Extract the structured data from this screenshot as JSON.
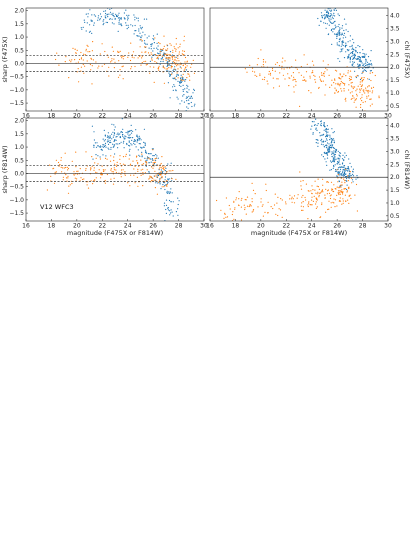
{
  "colors": {
    "blue": "#1f77b4",
    "orange": "#ff7f0e",
    "hline": "#333333"
  },
  "chart_data": [
    {
      "type": "scatter",
      "panel": "top-left",
      "xlabel": "",
      "ylabel": "sharp (F475X)",
      "xlim": [
        16,
        30
      ],
      "ylim": [
        -1.8,
        2.1
      ],
      "xticks": [
        16,
        18,
        20,
        22,
        24,
        26,
        28,
        30
      ],
      "yticks": [
        -1.5,
        -1.0,
        -0.5,
        0.0,
        0.5,
        1.0,
        1.5,
        2.0
      ],
      "ytick_labels": [
        "−1.5",
        "−1.0",
        "−0.5",
        "0.0",
        "0.5",
        "1.0",
        "1.5",
        "2.0"
      ],
      "grid": false,
      "hlines": [
        {
          "y": 0.3,
          "style": "dashed"
        },
        {
          "y": 0.0,
          "style": "solid"
        },
        {
          "y": -0.3,
          "style": "dashed"
        }
      ],
      "series": [
        {
          "color": "blue",
          "role": "rejected sources",
          "x": [
            20.5,
            22.0,
            23.0,
            24.0,
            25.0,
            26.0,
            27.0,
            27.8,
            28.4,
            29.0
          ],
          "y": [
            1.4,
            1.7,
            1.8,
            1.6,
            1.2,
            0.7,
            0.2,
            -0.4,
            -1.0,
            -1.6
          ]
        },
        {
          "color": "orange",
          "role": "selected stars",
          "x": [
            19.0,
            21.0,
            23.0,
            25.0,
            26.5,
            27.5,
            28.2,
            28.6
          ],
          "y": [
            0.0,
            0.05,
            0.1,
            0.15,
            0.2,
            0.25,
            0.1,
            -0.25
          ]
        }
      ]
    },
    {
      "type": "scatter",
      "panel": "top-right",
      "xlabel": "",
      "ylabel": "chi (F475X)",
      "xlim": [
        16,
        30
      ],
      "ylim": [
        0.3,
        4.3
      ],
      "xticks": [
        16,
        18,
        20,
        22,
        24,
        26,
        28,
        30
      ],
      "yticks": [
        0.5,
        1.0,
        1.5,
        2.0,
        2.5,
        3.0,
        3.5,
        4.0
      ],
      "ytick_labels": [
        "0.5",
        "1.0",
        "1.5",
        "2.0",
        "2.5",
        "3.0",
        "3.5",
        "4.0"
      ],
      "grid": false,
      "hlines": [
        {
          "y": 2.0,
          "style": "solid"
        }
      ],
      "series": [
        {
          "color": "blue",
          "role": "rejected sources",
          "x": [
            25.0,
            25.5,
            26.0,
            26.5,
            27.0,
            27.5,
            28.0,
            28.5
          ],
          "y": [
            4.3,
            3.9,
            3.4,
            3.0,
            2.6,
            2.3,
            2.1,
            2.05
          ]
        },
        {
          "color": "orange",
          "role": "selected stars",
          "x": [
            19.0,
            22.0,
            24.0,
            26.0,
            27.0,
            28.0,
            28.7
          ],
          "y": [
            1.8,
            1.7,
            1.6,
            1.4,
            1.2,
            1.1,
            1.0
          ]
        }
      ]
    },
    {
      "type": "scatter",
      "panel": "bottom-left",
      "xlabel": "magnitude (F475X or F814W)",
      "ylabel": "sharp (F814W)",
      "annotation": "V12 WFC3",
      "xlim": [
        16,
        30
      ],
      "ylim": [
        -1.8,
        2.1
      ],
      "xticks": [
        16,
        18,
        20,
        22,
        24,
        26,
        28,
        30
      ],
      "yticks": [
        -1.5,
        -1.0,
        -0.5,
        0.0,
        0.5,
        1.0,
        1.5,
        2.0
      ],
      "ytick_labels": [
        "−1.5",
        "−1.0",
        "−0.5",
        "0.0",
        "0.5",
        "1.0",
        "1.5",
        "2.0"
      ],
      "grid": false,
      "hlines": [
        {
          "y": 0.3,
          "style": "dashed"
        },
        {
          "y": 0.0,
          "style": "solid"
        },
        {
          "y": -0.3,
          "style": "dashed"
        }
      ],
      "series": [
        {
          "color": "blue",
          "role": "rejected sources",
          "x": [
            21.5,
            22.5,
            23.5,
            24.5,
            25.5,
            26.3,
            27.0,
            27.5
          ],
          "y": [
            0.9,
            1.2,
            1.5,
            1.3,
            0.8,
            0.3,
            -0.5,
            -1.6
          ]
        },
        {
          "color": "orange",
          "role": "selected stars",
          "x": [
            18.0,
            20.0,
            22.0,
            24.0,
            25.5,
            26.5,
            27.0
          ],
          "y": [
            0.0,
            0.05,
            0.1,
            0.1,
            0.15,
            0.1,
            -0.2
          ]
        }
      ]
    },
    {
      "type": "scatter",
      "panel": "bottom-right",
      "xlabel": "magnitude (F475X or F814W)",
      "ylabel": "chi (F814W)",
      "xlim": [
        16,
        30
      ],
      "ylim": [
        0.3,
        4.3
      ],
      "xticks": [
        16,
        18,
        20,
        22,
        24,
        26,
        28,
        30
      ],
      "yticks": [
        0.5,
        1.0,
        1.5,
        2.0,
        2.5,
        3.0,
        3.5,
        4.0
      ],
      "ytick_labels": [
        "0.5",
        "1.0",
        "1.5",
        "2.0",
        "2.5",
        "3.0",
        "3.5",
        "4.0"
      ],
      "grid": false,
      "hlines": [
        {
          "y": 2.0,
          "style": "solid"
        }
      ],
      "series": [
        {
          "color": "blue",
          "role": "rejected sources",
          "x": [
            24.5,
            25.0,
            25.5,
            26.0,
            26.5,
            27.0
          ],
          "y": [
            4.3,
            3.6,
            3.0,
            2.5,
            2.2,
            2.0
          ]
        },
        {
          "color": "orange",
          "role": "selected stars",
          "x": [
            17.0,
            20.0,
            23.0,
            25.0,
            26.0,
            27.0
          ],
          "y": [
            0.7,
            0.9,
            1.1,
            1.3,
            1.5,
            1.4
          ]
        }
      ]
    }
  ]
}
